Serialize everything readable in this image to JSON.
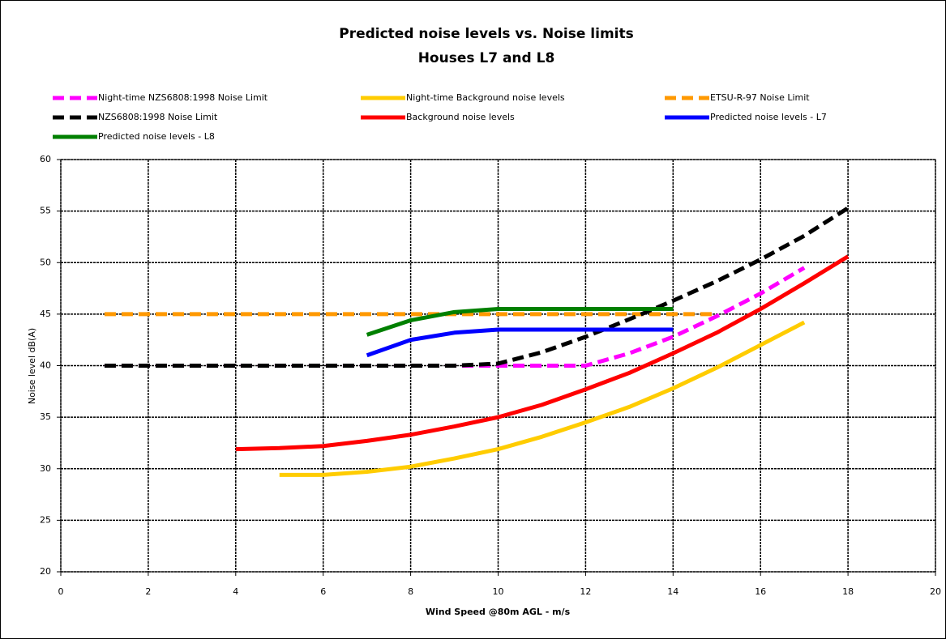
{
  "chart_data": {
    "type": "line",
    "title": "Predicted noise levels vs. Noise limits",
    "subtitle": "Houses L7 and L8",
    "x_label": "Wind Speed @80m AGL - m/s",
    "y_label": "Noise level dB(A)",
    "x": [
      1,
      2,
      3,
      4,
      5,
      6,
      7,
      8,
      9,
      10,
      11,
      12,
      13,
      14,
      15,
      16,
      17,
      18
    ],
    "series": [
      {
        "name": "Night-time NZS6808:1998 Noise Limit",
        "color": "#ff00ff",
        "dashed": true,
        "values": [
          40,
          40,
          40,
          40,
          40,
          40,
          40,
          40,
          40,
          40,
          40,
          40,
          41.2,
          42.8,
          44.8,
          47,
          49.5,
          null
        ]
      },
      {
        "name": "Night-time Background noise levels",
        "color": "#ffcc00",
        "dashed": false,
        "values": [
          null,
          null,
          null,
          null,
          29.4,
          29.4,
          29.7,
          30.2,
          31,
          31.9,
          33.1,
          34.5,
          36,
          37.8,
          39.8,
          42,
          44.2,
          null
        ]
      },
      {
        "name": "ETSU-R-97 Noise Limit",
        "color": "#ff9900",
        "dashed": true,
        "values": [
          45,
          45,
          45,
          45,
          45,
          45,
          45,
          45,
          45,
          45,
          45,
          45,
          45,
          45,
          45,
          null,
          null,
          null
        ]
      },
      {
        "name": "NZS6808:1998 Noise Limit",
        "color": "#000000",
        "dashed": true,
        "values": [
          40,
          40,
          40,
          40,
          40,
          40,
          40,
          40,
          40,
          40.2,
          41.3,
          42.8,
          44.5,
          46.3,
          48.2,
          50.3,
          52.6,
          55.3
        ]
      },
      {
        "name": "Background noise levels",
        "color": "#ff0000",
        "dashed": false,
        "values": [
          null,
          null,
          null,
          31.9,
          32,
          32.2,
          32.7,
          33.3,
          34.1,
          35,
          36.2,
          37.7,
          39.3,
          41.2,
          43.2,
          45.5,
          48,
          50.6
        ]
      },
      {
        "name": "Predicted noise levels - L7",
        "color": "#0000ff",
        "dashed": false,
        "values": [
          null,
          null,
          null,
          null,
          null,
          null,
          41,
          42.5,
          43.2,
          43.5,
          43.5,
          43.5,
          43.5,
          43.5,
          null,
          null,
          null,
          null
        ]
      },
      {
        "name": "Predicted noise levels - L8",
        "color": "#008000",
        "dashed": false,
        "values": [
          null,
          null,
          null,
          null,
          null,
          null,
          43,
          44.4,
          45.2,
          45.5,
          45.5,
          45.5,
          45.5,
          45.5,
          null,
          null,
          null,
          null
        ]
      }
    ],
    "xlim": [
      0,
      20
    ],
    "xticks": [
      0,
      2,
      4,
      6,
      8,
      10,
      12,
      14,
      16,
      18,
      20
    ],
    "ylim": [
      20,
      60
    ],
    "yticks": [
      20,
      25,
      30,
      35,
      40,
      45,
      50,
      55,
      60
    ],
    "grid": true
  }
}
